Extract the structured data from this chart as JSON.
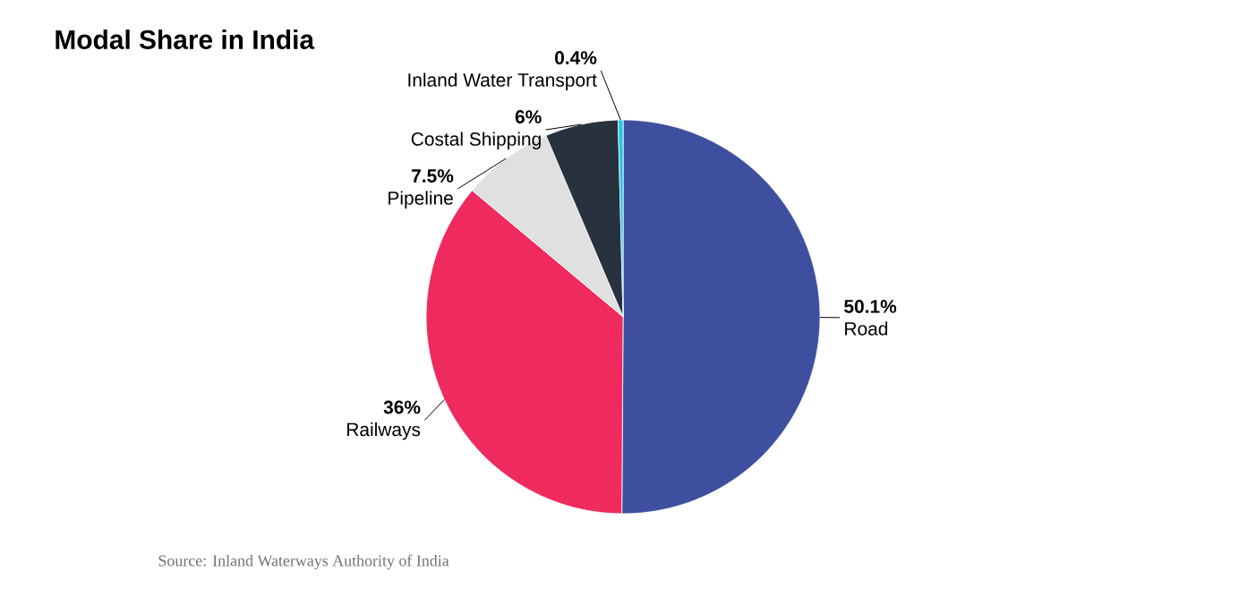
{
  "chart_data": {
    "type": "pie",
    "title": "Modal Share in India",
    "categories": [
      "Road",
      "Railways",
      "Pipeline",
      "Costal Shipping",
      "Inland Water Transport"
    ],
    "values": [
      50.1,
      36,
      7.5,
      6,
      0.4
    ],
    "value_labels": [
      "50.1%",
      "36%",
      "7.5%",
      "6%",
      "0.4%"
    ],
    "colors": [
      "#3f4fa0",
      "#ee2a5f",
      "#e0e0e0",
      "#28323e",
      "#1ec8e8"
    ],
    "annotations": [
      "Source: Inland Waterways Authority of India"
    ]
  }
}
